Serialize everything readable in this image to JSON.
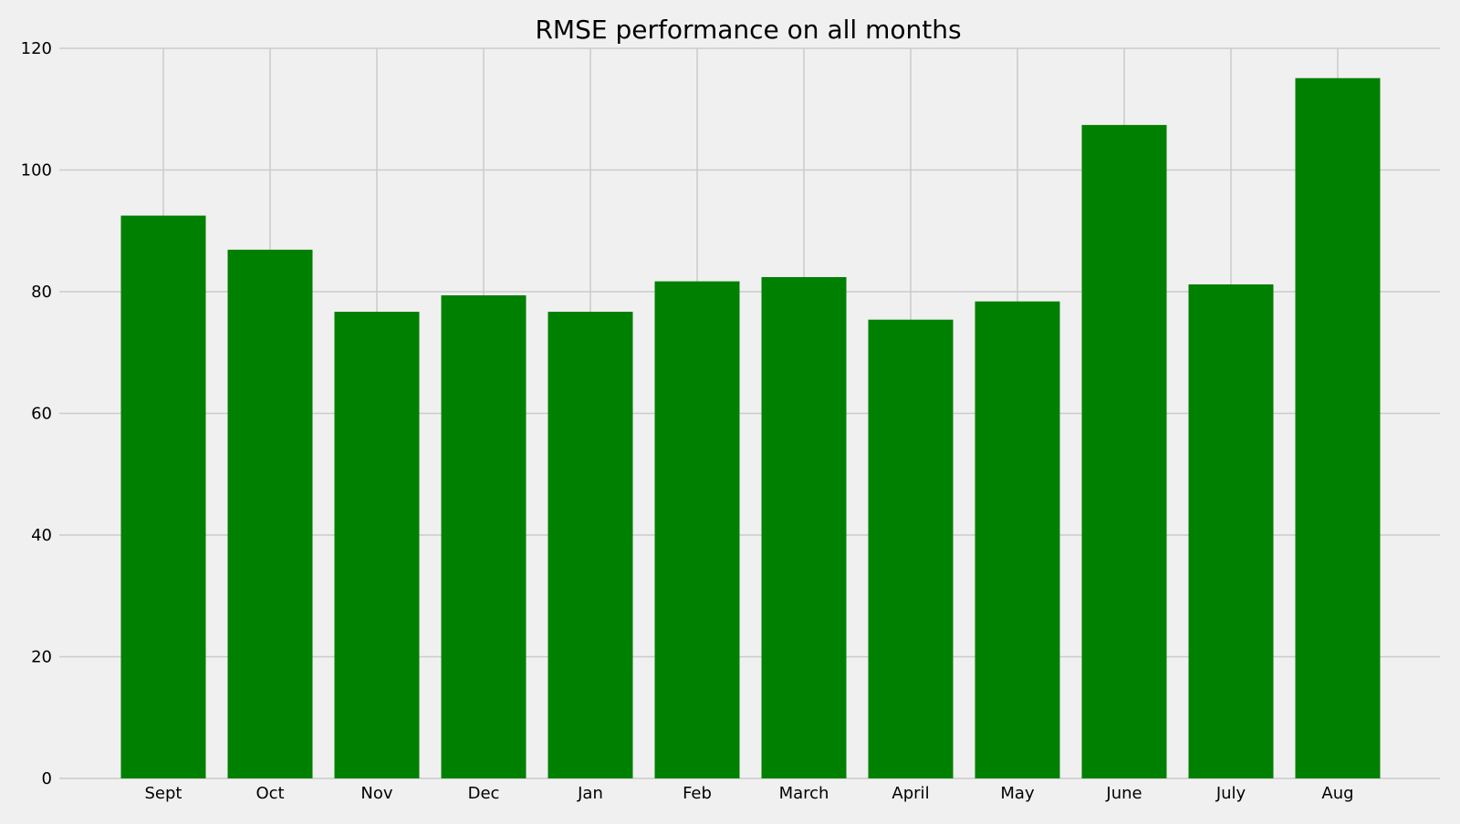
{
  "chart_data": {
    "type": "bar",
    "title": "RMSE performance on all months",
    "xlabel": "",
    "ylabel": "",
    "categories": [
      "Sept",
      "Oct",
      "Nov",
      "Dec",
      "Jan",
      "Feb",
      "March",
      "April",
      "May",
      "June",
      "July",
      "Aug"
    ],
    "values": [
      92.5,
      86.9,
      76.7,
      79.4,
      76.7,
      81.7,
      82.4,
      75.4,
      78.4,
      107.4,
      81.2,
      115.1
    ],
    "ylim": [
      0,
      120
    ],
    "yticks": [
      0,
      20,
      40,
      60,
      80,
      100,
      120
    ],
    "grid": true,
    "legend": "none",
    "colors": {
      "bar": "#008000",
      "background": "#f0f0f0",
      "grid": "#cbcbcb",
      "text": "#000000"
    }
  }
}
